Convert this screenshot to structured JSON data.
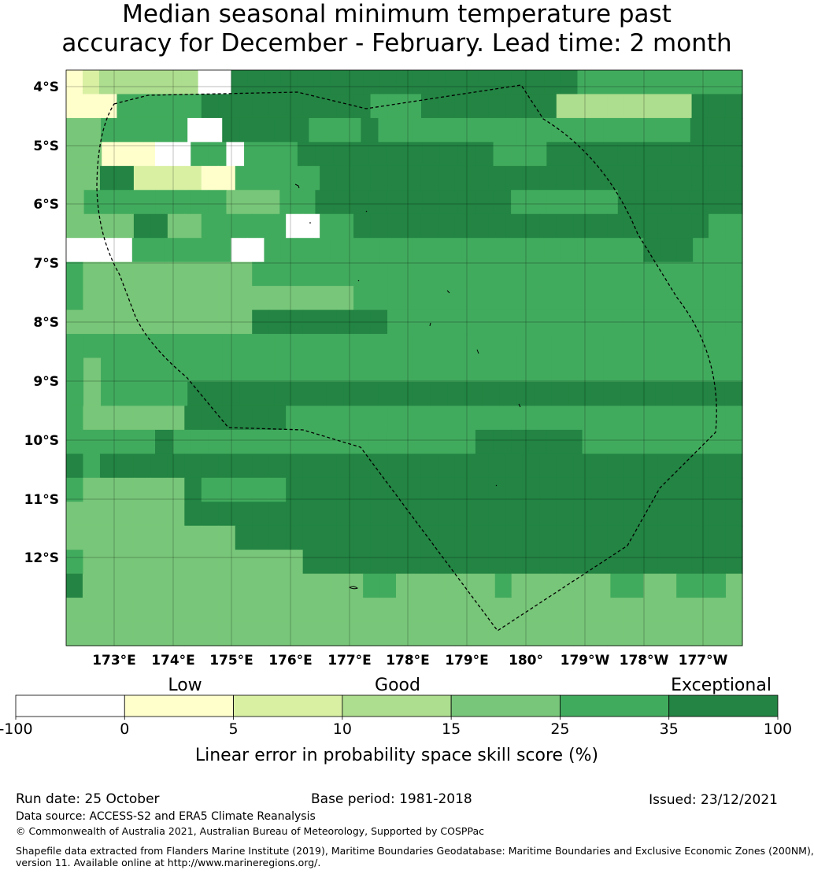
{
  "title": {
    "line1": "Median seasonal minimum temperature past",
    "line2": "accuracy for December - February. Lead time: 2 month"
  },
  "map": {
    "lat_ticks": [
      "4°S",
      "5°S",
      "6°S",
      "7°S",
      "8°S",
      "9°S",
      "10°S",
      "11°S",
      "12°S"
    ],
    "lon_ticks": [
      "173°E",
      "174°E",
      "175°E",
      "176°E",
      "177°E",
      "178°E",
      "179°E",
      "180°",
      "179°W",
      "178°W",
      "177°W"
    ],
    "grid_rows": [
      "B2333333AA6666666666666666666667777777777",
      "BBB5555566666666665556666666633333333666",
      "4455555AA666665556555555555555555555666",
      "44111AA55A5556666666666655566666666666",
      "44662222BB555556666666666666666666666666",
      "45555555544455666666666667777776666666",
      "4444664455555AA5566666666666666666666677",
      "0000555555AA55555777777777777777777666777",
      "7444444444475577777777777777777777777777",
      "7444444444444444457777777777777777777777",
      "4444444444466666666777777777777777777777",
      "777777777777777777777777777777777777777",
      "747777777777777777777777777777777777777",
      "745555566666666666666666666666666666666",
      "7444444666666777777777777777777777777777",
      "55555655557777777777777666666777777777",
      "6566666666666666666666666666666666666666",
      "5444444655555666666666666666666666666666",
      "4444444666666666666666666666666666666666",
      "4444444444666666666666666666666666666666",
      "5444444444444466666666666666666666666666",
      "64444444444444444455444444544444455445554",
      "4444444444444444444444444444444444444444",
      "4444444444444444444444444444444444444444"
    ],
    "legend_level_colors": [
      "#ffffff",
      "#ffffcc",
      "#d9f0a3",
      "#addd8e",
      "#78c679",
      "#41ab5d",
      "#238443"
    ]
  },
  "colorbar": {
    "category_labels": [
      "Low",
      "Good",
      "Exceptional"
    ],
    "tick_labels": [
      "-100",
      "0",
      "5",
      "10",
      "15",
      "25",
      "35",
      "100"
    ],
    "colors": [
      "#ffffff",
      "#ffffcc",
      "#d9f0a3",
      "#addd8e",
      "#78c679",
      "#41ab5d",
      "#238443"
    ],
    "label": "Linear error in probability space skill score (%)"
  },
  "footer": {
    "run_date": "Run date: 25 October",
    "base_period": "Base period: 1981-2018",
    "issued": "Issued: 23/12/2021",
    "data_source": "Data source: ACCESS-S2 and ERA5 Climate Reanalysis",
    "copyright": "© Commonwealth of Australia 2021, Australian Bureau of Meteorology, Supported by COSPPac",
    "shapefile_line1": "Shapefile data extracted from Flanders Marine Institute (2019), Maritime Boundaries Geodatabase: Maritime Boundaries and Exclusive Economic Zones (200NM),",
    "shapefile_line2": "version 11. Available online at http://www.marineregions.org/."
  }
}
